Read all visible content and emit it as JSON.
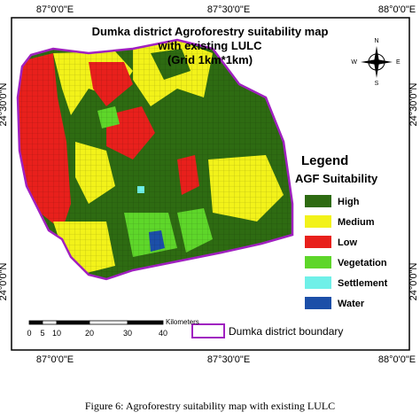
{
  "coordinates": {
    "top": [
      "87°0'0\"E",
      "87°30'0\"E",
      "88°0'0\"E"
    ],
    "bottom": [
      "87°0'0\"E",
      "87°30'0\"E",
      "88°0'0\"E"
    ],
    "left": [
      "24°30'0\"N",
      "24°0'0\"N"
    ],
    "right": [
      "24°30'0\"N",
      "24°0'0\"N"
    ]
  },
  "title": [
    "Dumka district Agroforestry suitability map",
    "with existing LULC",
    "(Grid 1km*1km)"
  ],
  "compass": {
    "n": "N",
    "e": "E",
    "s": "S",
    "w": "W"
  },
  "legend": {
    "heading": "Legend",
    "subheading": "AGF Suitability",
    "items": [
      {
        "label": "High",
        "color": "#2e6b12"
      },
      {
        "label": "Medium",
        "color": "#f2f21a"
      },
      {
        "label": "Low",
        "color": "#e8201c"
      },
      {
        "label": "Vegetation",
        "color": "#5ed62a"
      },
      {
        "label": "Settlement",
        "color": "#6ff0e8"
      },
      {
        "label": "Water",
        "color": "#1c4fa8"
      }
    ]
  },
  "boundary_label": "Dumka district boundary",
  "scale": {
    "ticks": [
      "0",
      "5",
      "10",
      "20",
      "30",
      "40"
    ],
    "unit": "Kilometers"
  },
  "caption": "Figure 6: Agroforestry suitability map with existing LULC"
}
